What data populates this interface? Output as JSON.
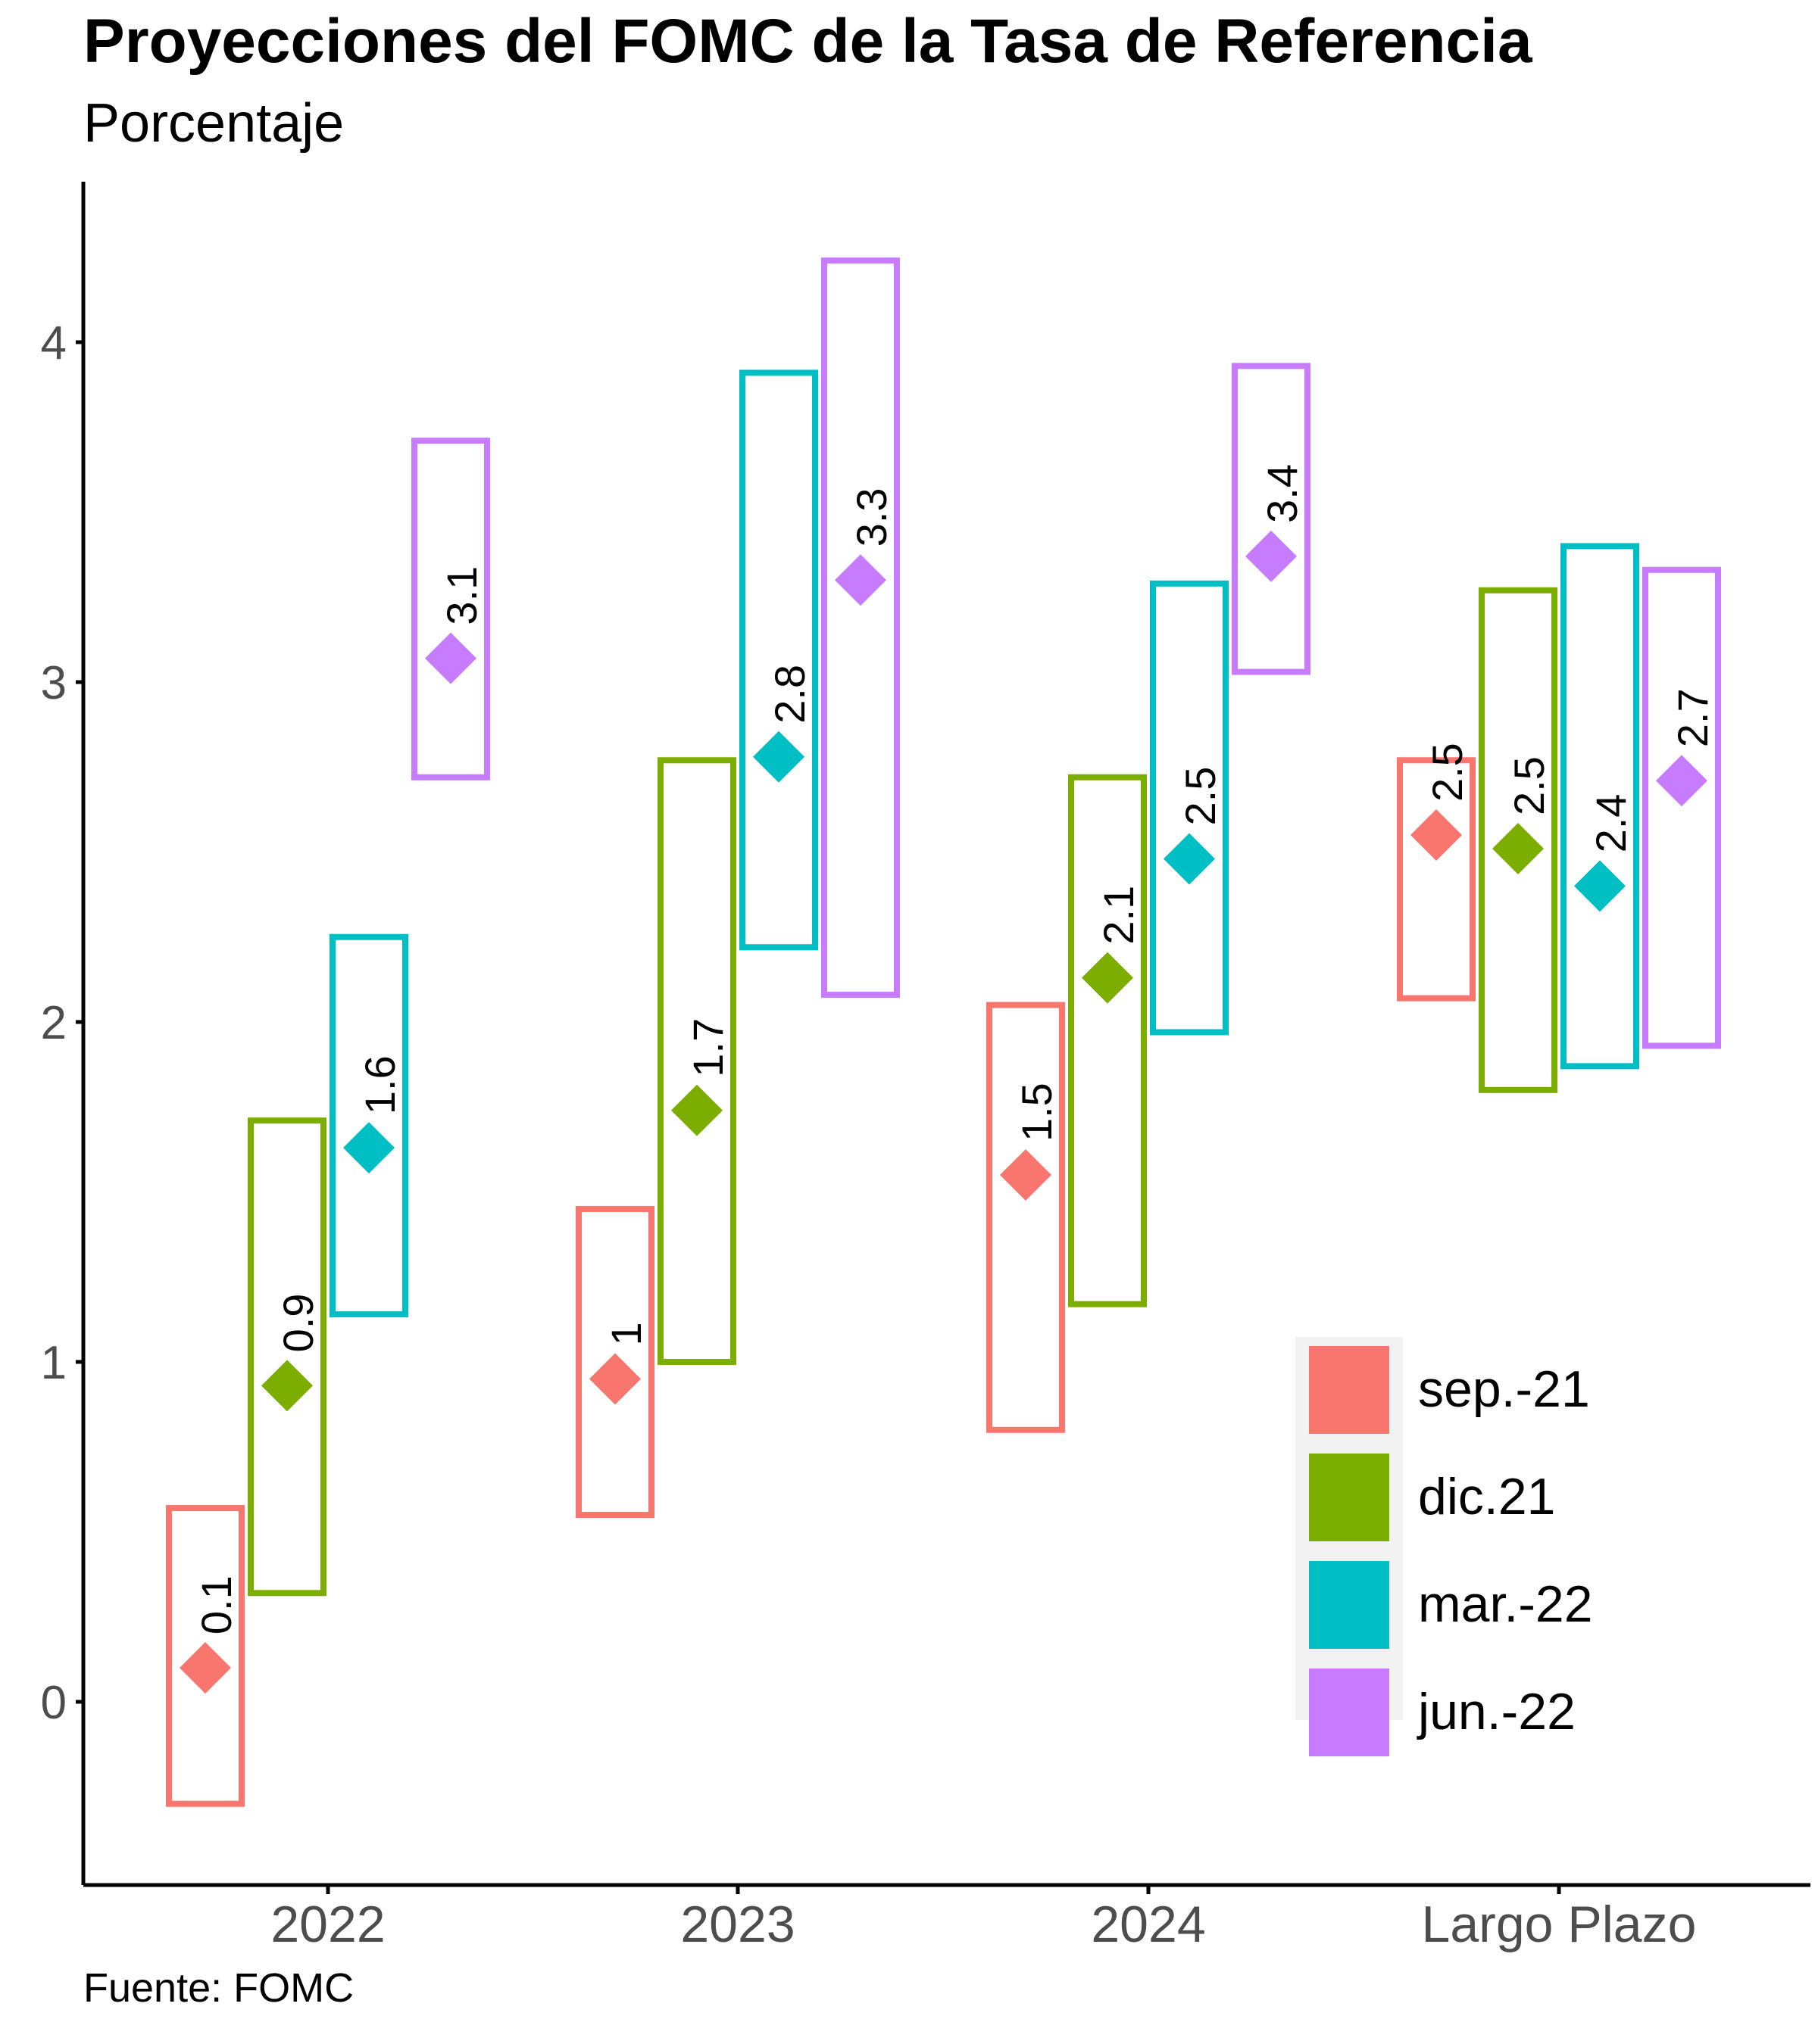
{
  "chart_data": {
    "type": "box",
    "title": "Proyecciones del FOMC de la Tasa de Referencia",
    "subtitle": "Porcentaje",
    "source": "Fuente: FOMC",
    "xlabel": "",
    "ylabel": "",
    "categories": [
      "2022",
      "2023",
      "2024",
      "Largo Plazo"
    ],
    "ylim": [
      -0.55,
      4.55
    ],
    "yticks": [
      0,
      1,
      2,
      3,
      4
    ],
    "grid": false,
    "legend_position": "bottom-right",
    "series": [
      {
        "name": "sep.-21",
        "color": "#F8766D",
        "median": [
          0.1,
          0.95,
          1.55,
          2.55
        ],
        "median_label": [
          "0.1",
          "1",
          "1.5",
          "2.5"
        ],
        "low": [
          -0.3,
          0.55,
          0.8,
          2.07
        ],
        "high": [
          0.57,
          1.45,
          2.05,
          2.77
        ]
      },
      {
        "name": "dic.21",
        "color": "#7CAE00",
        "median": [
          0.93,
          1.74,
          2.13,
          2.51
        ],
        "median_label": [
          "0.9",
          "1.7",
          "2.1",
          "2.5"
        ],
        "low": [
          0.32,
          1.0,
          1.17,
          1.8
        ],
        "high": [
          1.71,
          2.77,
          2.72,
          3.27
        ]
      },
      {
        "name": "mar.-22",
        "color": "#00BFC4",
        "median": [
          1.63,
          2.78,
          2.48,
          2.4
        ],
        "median_label": [
          "1.6",
          "2.8",
          "2.5",
          "2.4"
        ],
        "low": [
          1.14,
          2.22,
          1.97,
          1.87
        ],
        "high": [
          2.25,
          3.91,
          3.29,
          3.4
        ]
      },
      {
        "name": "jun.-22",
        "color": "#C77CFF",
        "median": [
          3.07,
          3.3,
          3.37,
          2.71
        ],
        "median_label": [
          "3.1",
          "3.3",
          "3.4",
          "2.7"
        ],
        "low": [
          2.72,
          2.08,
          3.03,
          1.93
        ],
        "high": [
          3.71,
          4.24,
          3.93,
          3.33
        ]
      }
    ]
  }
}
